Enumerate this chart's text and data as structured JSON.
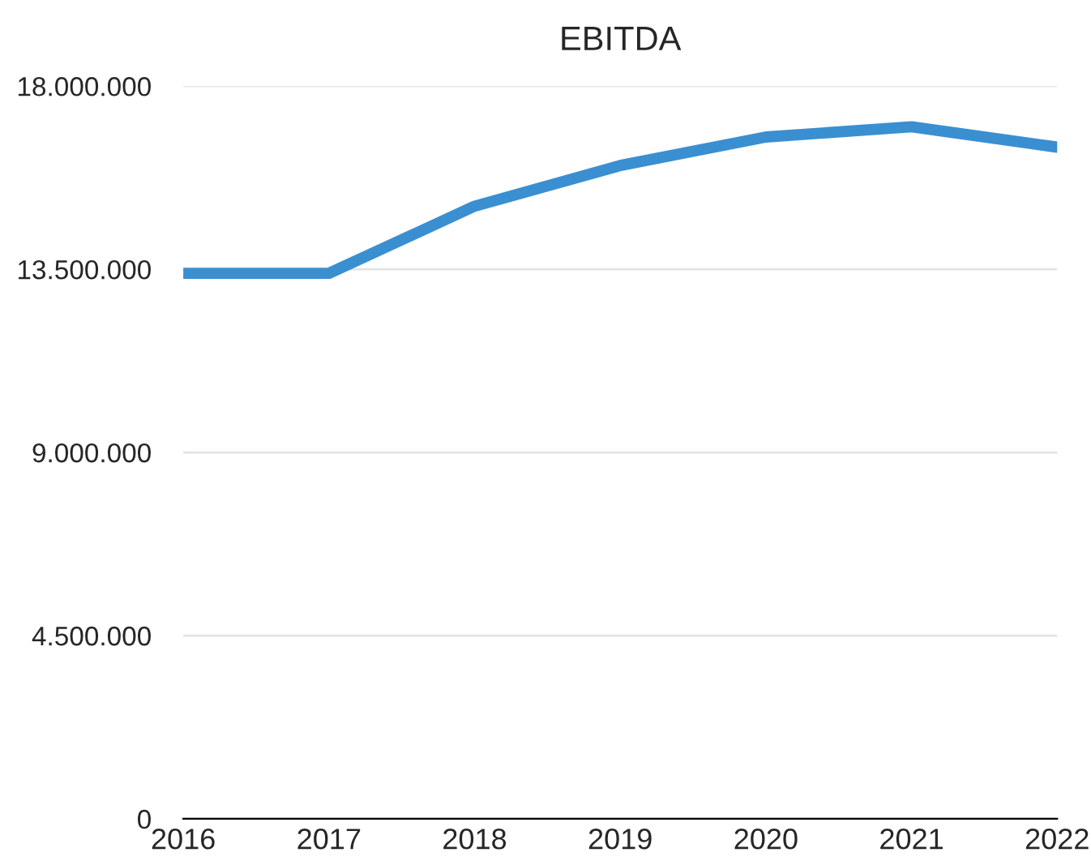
{
  "chart_data": {
    "type": "line",
    "title": "EBITDA",
    "categories": [
      "2016",
      "2017",
      "2018",
      "2019",
      "2020",
      "2021",
      "2022"
    ],
    "series": [
      {
        "color": "#3a8fd1",
        "values": [
          13400000,
          13400000,
          15050000,
          16050000,
          16750000,
          17000000,
          16500000
        ]
      }
    ],
    "ylim": [
      0,
      18000000
    ],
    "yticks": [
      {
        "value": 0,
        "label": "0"
      },
      {
        "value": 4500000,
        "label": "4.500.000"
      },
      {
        "value": 9000000,
        "label": "9.000.000"
      },
      {
        "value": 13500000,
        "label": "13.500.000"
      },
      {
        "value": 18000000,
        "label": "18.000.000"
      }
    ],
    "grid": "y",
    "marker": "none",
    "line_style": "solid"
  }
}
